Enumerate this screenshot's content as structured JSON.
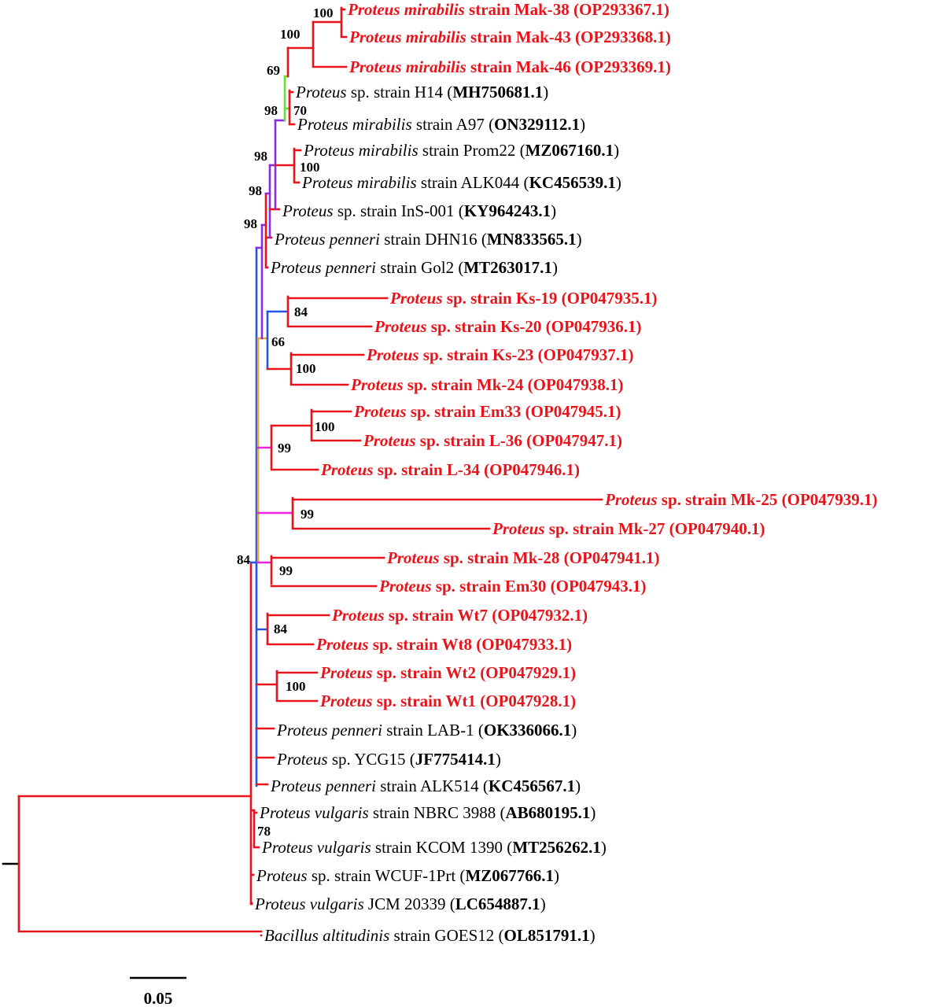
{
  "colors": {
    "red_branch": "#e8141b",
    "green_branch": "#66e02e",
    "purple_branch": "#8a2be2",
    "blue_branch": "#2255e6",
    "orange_branch": "#f0a830",
    "magenta_branch": "#ee22dd",
    "query_label": "#e8141b",
    "reference_label": "#000000"
  },
  "leaves": [
    {
      "id": "mak38",
      "genus": "Proteus",
      "species": "mirabilis",
      "rest": " strain Mak-38 ",
      "accession": "(OP293367.1)",
      "query": true
    },
    {
      "id": "mak43",
      "genus": "Proteus",
      "species": "mirabilis",
      "rest": " strain Mak-43 ",
      "accession": "(OP293368.1)",
      "query": true
    },
    {
      "id": "mak46",
      "genus": "Proteus",
      "species": "mirabilis",
      "rest": " strain Mak-46 ",
      "accession": "(OP293369.1)",
      "query": true
    },
    {
      "id": "h14",
      "genus": "Proteus",
      "species": "",
      "rest": " sp. strain H14 (",
      "accession": "MH750681.1",
      "close": ")",
      "query": false
    },
    {
      "id": "a97",
      "genus": "Proteus",
      "species": "mirabilis",
      "rest": " strain A97 (",
      "accession": "ON329112.1",
      "close": ")",
      "query": false
    },
    {
      "id": "prom22",
      "genus": "Proteus",
      "species": "mirabilis",
      "rest": " strain Prom22 (",
      "accession": "MZ067160.1",
      "close": ")",
      "query": false
    },
    {
      "id": "alk044",
      "genus": "Proteus",
      "species": "mirabilis",
      "rest": " strain ALK044 (",
      "accession": "KC456539.1",
      "close": ")",
      "query": false
    },
    {
      "id": "ins001",
      "genus": "Proteus",
      "species": "",
      "rest": " sp. strain InS-001 (",
      "accession": "KY964243.1",
      "close": ")",
      "query": false
    },
    {
      "id": "dhn16",
      "genus": "Proteus",
      "species": "penneri",
      "rest": " strain DHN16 (",
      "accession": "MN833565.1",
      "close": ")",
      "query": false
    },
    {
      "id": "gol2",
      "genus": "Proteus",
      "species": "penneri",
      "rest": " strain Gol2 (",
      "accession": "MT263017.1",
      "close": ")",
      "query": false
    },
    {
      "id": "ks19",
      "genus": "Proteus",
      "species": "",
      "rest": " sp. strain Ks-19 ",
      "accession": "(OP047935.1)",
      "query": true
    },
    {
      "id": "ks20",
      "genus": "Proteus",
      "species": "",
      "rest": " sp. strain Ks-20 ",
      "accession": "(OP047936.1)",
      "query": true
    },
    {
      "id": "ks23",
      "genus": "Proteus",
      "species": "",
      "rest": " sp. strain Ks-23 ",
      "accession": "(OP047937.1)",
      "query": true
    },
    {
      "id": "mk24",
      "genus": "Proteus",
      "species": "",
      "rest": " sp. strain Mk-24 ",
      "accession": "(OP047938.1)",
      "query": true
    },
    {
      "id": "em33",
      "genus": "Proteus",
      "species": "",
      "rest": " sp. strain Em33 ",
      "accession": "(OP047945.1)",
      "query": true
    },
    {
      "id": "l36",
      "genus": "Proteus",
      "species": "",
      "rest": " sp. strain L-36 ",
      "accession": "(OP047947.1)",
      "query": true
    },
    {
      "id": "l34",
      "genus": "Proteus",
      "species": "",
      "rest": " sp. strain L-34 ",
      "accession": "(OP047946.1)",
      "query": true
    },
    {
      "id": "mk25",
      "genus": "Proteus",
      "species": "",
      "rest": " sp. strain Mk-25 ",
      "accession": "(OP047939.1)",
      "query": true
    },
    {
      "id": "mk27",
      "genus": "Proteus",
      "species": "",
      "rest": " sp. strain Mk-27 ",
      "accession": "(OP047940.1)",
      "query": true
    },
    {
      "id": "mk28",
      "genus": "Proteus",
      "species": "",
      "rest": " sp. strain Mk-28 ",
      "accession": "(OP047941.1)",
      "query": true
    },
    {
      "id": "em30",
      "genus": "Proteus",
      "species": "",
      "rest": " sp. strain Em30 ",
      "accession": "(OP047943.1)",
      "query": true
    },
    {
      "id": "wt7",
      "genus": "Proteus",
      "species": "",
      "rest": " sp. strain Wt7 ",
      "accession": "(OP047932.1)",
      "query": true
    },
    {
      "id": "wt8",
      "genus": "Proteus",
      "species": "",
      "rest": " sp. strain Wt8 ",
      "accession": "(OP047933.1)",
      "query": true
    },
    {
      "id": "wt2",
      "genus": "Proteus",
      "species": "",
      "rest": " sp. strain Wt2 ",
      "accession": "(OP047929.1)",
      "query": true
    },
    {
      "id": "wt1",
      "genus": "Proteus",
      "species": "",
      "rest": " sp. strain Wt1 ",
      "accession": "(OP047928.1)",
      "query": true
    },
    {
      "id": "lab1",
      "genus": "Proteus",
      "species": "penneri",
      "rest": " strain LAB-1 (",
      "accession": "OK336066.1",
      "close": ")",
      "query": false
    },
    {
      "id": "ycg15",
      "genus": "Proteus",
      "species": "",
      "rest": " sp. YCG15 (",
      "accession": "JF775414.1",
      "close": ")",
      "query": false
    },
    {
      "id": "alk514",
      "genus": "Proteus",
      "species": "penneri",
      "rest": " strain ALK514 (",
      "accession": "KC456567.1",
      "close": ")",
      "query": false
    },
    {
      "id": "nbrc3988",
      "genus": "Proteus",
      "species": "vulgaris",
      "rest": " strain NBRC 3988 (",
      "accession": "AB680195.1",
      "close": ")",
      "query": false
    },
    {
      "id": "kcom1390",
      "genus": "Proteus",
      "species": "vulgaris",
      "rest": " strain KCOM 1390 (",
      "accession": "MT256262.1",
      "close": ")",
      "query": false
    },
    {
      "id": "wcuf",
      "genus": "Proteus",
      "species": "",
      "rest": " sp. strain WCUF-1Prt (",
      "accession": "MZ067766.1",
      "close": ")",
      "query": false
    },
    {
      "id": "jcm20339",
      "genus": "Proteus",
      "species": "vulgaris",
      "rest": " JCM 20339 (",
      "accession": "LC654887.1",
      "close": ")",
      "query": false
    },
    {
      "id": "goes12",
      "genus": "Bacillus",
      "species": "altitudinis",
      "rest": " strain GOES12 (",
      "accession": "OL851791.1",
      "close": ")",
      "query": false
    }
  ],
  "bootstrap": [
    {
      "id": "n_mak_inner",
      "value": "100"
    },
    {
      "id": "n_mak",
      "value": "100"
    },
    {
      "id": "n_69",
      "value": "69"
    },
    {
      "id": "n_70",
      "value": "70"
    },
    {
      "id": "n_98a",
      "value": "98"
    },
    {
      "id": "n_prom",
      "value": "100"
    },
    {
      "id": "n_98b",
      "value": "98"
    },
    {
      "id": "n_98c",
      "value": "98"
    },
    {
      "id": "n_98d",
      "value": "98"
    },
    {
      "id": "n_ks",
      "value": "84"
    },
    {
      "id": "n_66",
      "value": "66"
    },
    {
      "id": "n_ks23",
      "value": "100"
    },
    {
      "id": "n_em33",
      "value": "100"
    },
    {
      "id": "n_99a",
      "value": "99"
    },
    {
      "id": "n_99b",
      "value": "99"
    },
    {
      "id": "n_99c",
      "value": "99"
    },
    {
      "id": "n_84",
      "value": "84"
    },
    {
      "id": "n_wt",
      "value": "84"
    },
    {
      "id": "n_wt2",
      "value": "100"
    },
    {
      "id": "n_78",
      "value": "78"
    }
  ],
  "scale_bar": {
    "label": "0.05"
  }
}
